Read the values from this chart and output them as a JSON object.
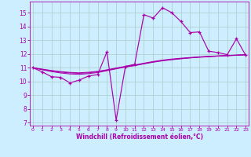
{
  "xlabel": "Windchill (Refroidissement éolien,°C)",
  "x_ticks": [
    0,
    1,
    2,
    3,
    4,
    5,
    6,
    7,
    8,
    9,
    10,
    11,
    12,
    13,
    14,
    15,
    16,
    17,
    18,
    19,
    20,
    21,
    22,
    23
  ],
  "ylim": [
    6.8,
    15.8
  ],
  "yticks": [
    7,
    8,
    9,
    10,
    11,
    12,
    13,
    14,
    15
  ],
  "xlim": [
    -0.3,
    23.3
  ],
  "bg_color": "#cceeff",
  "grid_color": "#aacccc",
  "line_color": "#aa00aa",
  "series": {
    "main": [
      11.0,
      10.7,
      10.35,
      10.3,
      9.9,
      10.1,
      10.4,
      10.5,
      12.15,
      7.2,
      11.1,
      11.25,
      14.85,
      14.6,
      15.35,
      15.0,
      14.35,
      13.55,
      13.6,
      12.2,
      12.1,
      11.95,
      13.1,
      11.9
    ],
    "flat1": [
      11.0,
      10.85,
      10.72,
      10.62,
      10.55,
      10.52,
      10.57,
      10.65,
      10.78,
      10.92,
      11.05,
      11.15,
      11.28,
      11.4,
      11.5,
      11.58,
      11.65,
      11.71,
      11.76,
      11.8,
      11.84,
      11.87,
      11.9,
      11.93
    ],
    "flat2": [
      11.0,
      10.88,
      10.77,
      10.68,
      10.62,
      10.59,
      10.63,
      10.7,
      10.82,
      10.95,
      11.07,
      11.17,
      11.3,
      11.42,
      11.52,
      11.6,
      11.66,
      11.72,
      11.77,
      11.81,
      11.85,
      11.88,
      11.91,
      11.94
    ],
    "flat3": [
      11.0,
      10.9,
      10.8,
      10.72,
      10.66,
      10.63,
      10.67,
      10.74,
      10.85,
      10.98,
      11.1,
      11.2,
      11.33,
      11.45,
      11.55,
      11.63,
      11.69,
      11.74,
      11.79,
      11.83,
      11.86,
      11.89,
      11.92,
      11.95
    ]
  }
}
